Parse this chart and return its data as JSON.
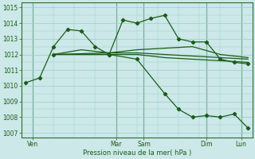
{
  "xlabel": "Pression niveau de la mer( hPa )",
  "bg_color": "#cce8e8",
  "grid_color": "#99cccc",
  "line_color": "#1a5c1a",
  "ylim": [
    1006.7,
    1015.3
  ],
  "xlim": [
    -0.3,
    16.3
  ],
  "yticks": [
    1007,
    1008,
    1009,
    1010,
    1011,
    1012,
    1013,
    1014,
    1015
  ],
  "xtick_positions": [
    0.5,
    6.5,
    8.5,
    13.0,
    15.5
  ],
  "xtick_labels": [
    "Ven",
    "Mar",
    "Sam",
    "Dim",
    "Lun"
  ],
  "vline_positions": [
    0.5,
    6.5,
    8.5,
    13.0,
    15.5
  ],
  "line1_x": [
    0,
    1,
    2,
    3,
    4,
    5,
    6,
    7,
    8,
    9,
    10,
    11,
    12,
    13,
    14,
    15,
    16
  ],
  "line1_y": [
    1010.2,
    1010.5,
    1012.5,
    1013.6,
    1013.5,
    1012.5,
    1012.0,
    1014.2,
    1014.0,
    1014.3,
    1014.5,
    1013.0,
    1012.8,
    1012.8,
    1011.7,
    1011.5,
    1011.4
  ],
  "line2_x": [
    2,
    6,
    8,
    12,
    14,
    16
  ],
  "line2_y": [
    1012.0,
    1012.1,
    1012.3,
    1012.5,
    1012.0,
    1011.8
  ],
  "line3_x": [
    2,
    6,
    8,
    10,
    12,
    14,
    16
  ],
  "line3_y": [
    1012.0,
    1012.0,
    1012.0,
    1011.8,
    1011.7,
    1011.6,
    1011.5
  ],
  "line4_x": [
    2,
    4,
    6,
    8,
    12,
    14,
    16
  ],
  "line4_y": [
    1012.0,
    1012.3,
    1012.1,
    1012.1,
    1011.9,
    1011.8,
    1011.7
  ],
  "line5_x": [
    2,
    6,
    8,
    10,
    11,
    12,
    13,
    14,
    15,
    16
  ],
  "line5_y": [
    1012.0,
    1012.0,
    1011.7,
    1009.5,
    1008.5,
    1008.0,
    1008.1,
    1008.0,
    1008.2,
    1007.3
  ]
}
